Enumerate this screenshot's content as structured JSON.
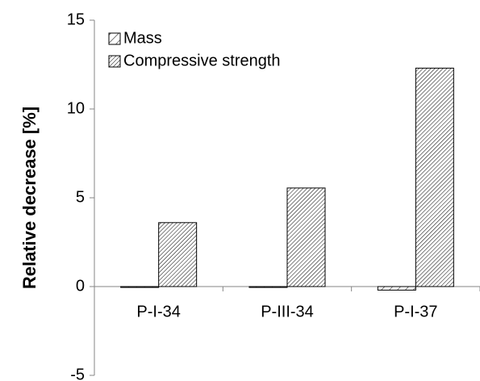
{
  "chart_data": {
    "type": "bar",
    "y_label": "Relative decrease [%]",
    "categories": [
      "P-I-34",
      "P-III-34",
      "P-I-37"
    ],
    "series": [
      {
        "name": "Mass",
        "color": "#000000",
        "values": [
          -0.05,
          -0.05,
          -0.2
        ]
      },
      {
        "name": "Compressive strength",
        "color": "#000000",
        "values": [
          3.6,
          5.55,
          12.3
        ]
      }
    ],
    "ylim": [
      -5,
      15
    ],
    "yticks": [
      -5,
      0,
      5,
      10,
      15
    ],
    "grid": false,
    "legend": "top-left"
  }
}
